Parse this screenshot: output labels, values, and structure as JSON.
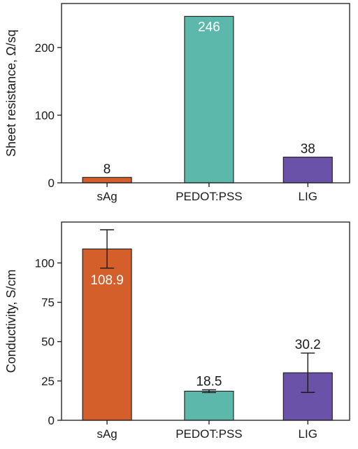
{
  "chart_data": [
    {
      "type": "bar",
      "categories": [
        "sAg",
        "PEDOT:PSS",
        "LIG"
      ],
      "values": [
        8,
        246,
        38
      ],
      "value_labels": [
        "8",
        "246",
        "38"
      ],
      "label_positions": [
        "above",
        "inside",
        "above"
      ],
      "colors": [
        "#d45f2b",
        "#5cb8aa",
        "#6a52a9"
      ],
      "ylabel": "Sheet resistance, Ω/sq",
      "ylim": [
        0,
        265
      ],
      "yticks": [
        0,
        100,
        200
      ],
      "ytick_labels": [
        "0",
        "100",
        "200"
      ]
    },
    {
      "type": "bar",
      "categories": [
        "sAg",
        "PEDOT:PSS",
        "LIG"
      ],
      "values": [
        108.9,
        18.5,
        30.2
      ],
      "errors": [
        12.2,
        0.9,
        12.5
      ],
      "value_labels": [
        "108.9",
        "18.5",
        "30.2"
      ],
      "label_positions": [
        "inside",
        "above",
        "above"
      ],
      "colors": [
        "#d45f2b",
        "#5cb8aa",
        "#6a52a9"
      ],
      "ylabel": "Conductivity, S/cm",
      "ylim": [
        0,
        126
      ],
      "yticks": [
        0,
        25,
        50,
        75,
        100
      ],
      "ytick_labels": [
        "0",
        "25",
        "50",
        "75",
        "100"
      ]
    }
  ]
}
